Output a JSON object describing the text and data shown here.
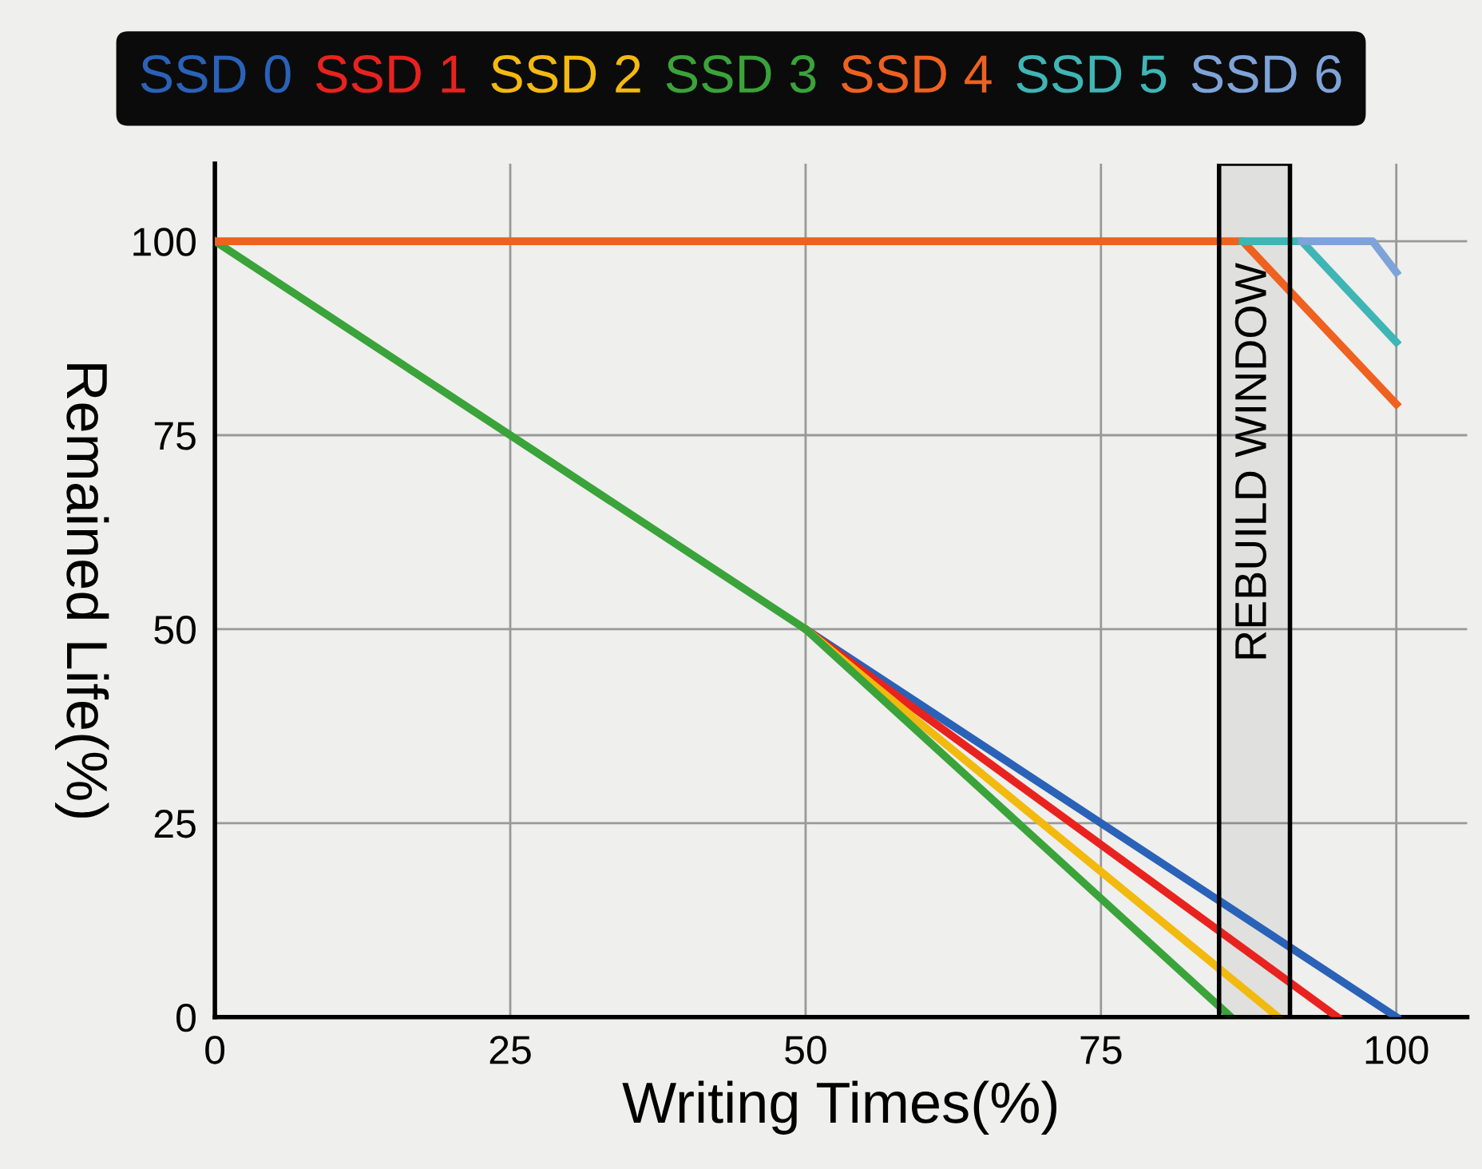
{
  "chart_data": {
    "type": "line",
    "xlabel": "Writing Times(%)",
    "ylabel": "Remained Life(%)",
    "series": [
      {
        "name": "SSD 0",
        "color": "#2a62b8",
        "x": [
          50,
          100
        ],
        "values": [
          50,
          0
        ]
      },
      {
        "name": "SSD 1",
        "color": "#e8231f",
        "x": [
          50,
          95
        ],
        "values": [
          50,
          0
        ]
      },
      {
        "name": "SSD 2",
        "color": "#f2b90f",
        "x": [
          50,
          90
        ],
        "values": [
          50,
          0
        ]
      },
      {
        "name": "SSD 3",
        "color": "#3aa33a",
        "x": [
          0,
          50,
          86
        ],
        "values": [
          100,
          50,
          0
        ]
      },
      {
        "name": "SSD 4",
        "color": "#ee6120",
        "x": [
          0,
          87,
          100
        ],
        "values": [
          100,
          100,
          79
        ]
      },
      {
        "name": "SSD 5",
        "color": "#3fb5b5",
        "x": [
          87,
          92,
          100
        ],
        "values": [
          100,
          100,
          87
        ]
      },
      {
        "name": "SSD 6",
        "color": "#7ea3d8",
        "x": [
          92,
          98,
          100
        ],
        "values": [
          100,
          100,
          96
        ]
      }
    ],
    "xlim": [
      0,
      106
    ],
    "ylim": [
      0,
      110
    ],
    "xticks": [
      0,
      25,
      50,
      75,
      100
    ],
    "yticks": [
      0,
      25,
      50,
      75,
      100
    ],
    "bands": [
      {
        "axis": "x",
        "from": 85,
        "to": 91,
        "label": "REBUILD WINDOW",
        "color": "#000000"
      }
    ],
    "grid": true,
    "legend": "top",
    "marker": "none",
    "line_style": "solid"
  }
}
